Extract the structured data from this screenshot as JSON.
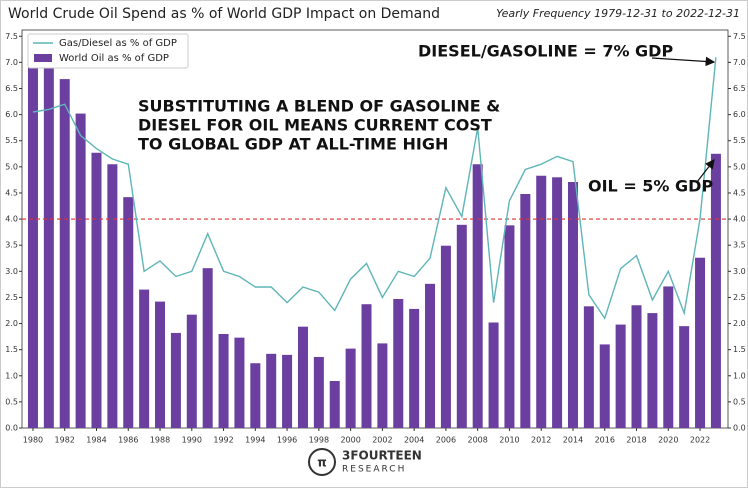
{
  "chart_data": {
    "type": "bar",
    "title": "World Crude Oil Spend as % of World GDP Impact on Demand",
    "subtitle": "Yearly Frequency 1979-12-31 to 2022-12-31",
    "x": [
      1980,
      1981,
      1982,
      1983,
      1984,
      1985,
      1986,
      1987,
      1988,
      1989,
      1990,
      1991,
      1992,
      1993,
      1994,
      1995,
      1996,
      1997,
      1998,
      1999,
      2000,
      2001,
      2002,
      2003,
      2004,
      2005,
      2006,
      2007,
      2008,
      2009,
      2010,
      2011,
      2012,
      2013,
      2014,
      2015,
      2016,
      2017,
      2018,
      2019,
      2020,
      2021,
      2022,
      2023
    ],
    "series": [
      {
        "name": "Gas/Diesel as % of GDP",
        "type": "line",
        "axis": "y2",
        "color": "#5fb5b8",
        "values": [
          6.05,
          6.1,
          6.2,
          5.6,
          5.35,
          5.15,
          5.05,
          3.0,
          3.2,
          2.9,
          3.0,
          3.72,
          3.0,
          2.9,
          2.7,
          2.7,
          2.4,
          2.7,
          2.6,
          2.25,
          2.85,
          3.15,
          2.5,
          3.0,
          2.9,
          3.25,
          4.6,
          4.05,
          5.75,
          2.4,
          4.35,
          4.95,
          5.05,
          5.2,
          5.1,
          2.55,
          2.1,
          3.05,
          3.3,
          2.45,
          3.0,
          2.2,
          4.0,
          7.1
        ]
      },
      {
        "name": "World Oil as % of GDP",
        "type": "bar",
        "color": "#6b3fa0",
        "values": [
          7.4,
          7.2,
          6.68,
          6.02,
          5.27,
          5.05,
          4.42,
          2.65,
          2.42,
          1.82,
          2.17,
          3.06,
          1.8,
          1.73,
          1.24,
          1.42,
          1.4,
          1.94,
          1.36,
          0.9,
          1.52,
          2.37,
          1.62,
          2.47,
          2.28,
          2.76,
          3.49,
          3.89,
          5.05,
          2.02,
          3.88,
          4.48,
          4.83,
          4.8,
          4.71,
          2.33,
          1.6,
          1.98,
          2.35,
          2.2,
          2.71,
          1.95,
          3.26,
          5.25
        ]
      }
    ],
    "xlim": [
      1979.31,
      2023.76
    ],
    "xticks": [
      1980,
      1982,
      1984,
      1986,
      1988,
      1990,
      1992,
      1994,
      1996,
      1998,
      2000,
      2002,
      2004,
      2006,
      2008,
      2010,
      2012,
      2014,
      2016,
      2018,
      2020,
      2022
    ],
    "ylim": [
      0,
      7.62
    ],
    "yticks": [
      {
        "value": 0,
        "label": "0.0"
      },
      0.5,
      {
        "value": 1,
        "label": "1.0"
      },
      1.5,
      {
        "value": 2,
        "label": "2.0"
      },
      2.5,
      {
        "value": 3,
        "label": "3.0"
      },
      3.5,
      {
        "value": 4,
        "label": "4.0"
      },
      4.5,
      {
        "value": 5,
        "label": "5.0"
      },
      5.5,
      {
        "value": 6,
        "label": "6.0"
      },
      6.5,
      {
        "value": 7,
        "label": "7.0"
      },
      7.5
    ],
    "y2lim": [
      0,
      7.62
    ],
    "y2ticks": [
      {
        "value": 0,
        "label": "0.0"
      },
      0.5,
      {
        "value": 1,
        "label": "1.0"
      },
      1.5,
      {
        "value": 2,
        "label": "2.0"
      },
      2.5,
      {
        "value": 3,
        "label": "3.0"
      },
      3.5,
      {
        "value": 4,
        "label": "4.0"
      },
      4.5,
      {
        "value": 5,
        "label": "5.0"
      },
      5.5,
      {
        "value": 6,
        "label": "6.0"
      },
      6.5,
      {
        "value": 7,
        "label": "7.0"
      },
      7.5
    ],
    "reference_line": {
      "value": 4,
      "color": "#e03030"
    },
    "legend": "upper left",
    "annotations": [
      "SUBSTITUTING A BLEND OF GASOLINE &",
      "DIESEL FOR OIL MEANS CURRENT COST",
      "TO GLOBAL GDP AT ALL-TIME HIGH",
      "DIESEL/GASOLINE  =  7% GDP",
      "OIL  =  5% GDP"
    ],
    "logo": [
      "3FOURTEEN",
      "RESEARCH"
    ]
  }
}
